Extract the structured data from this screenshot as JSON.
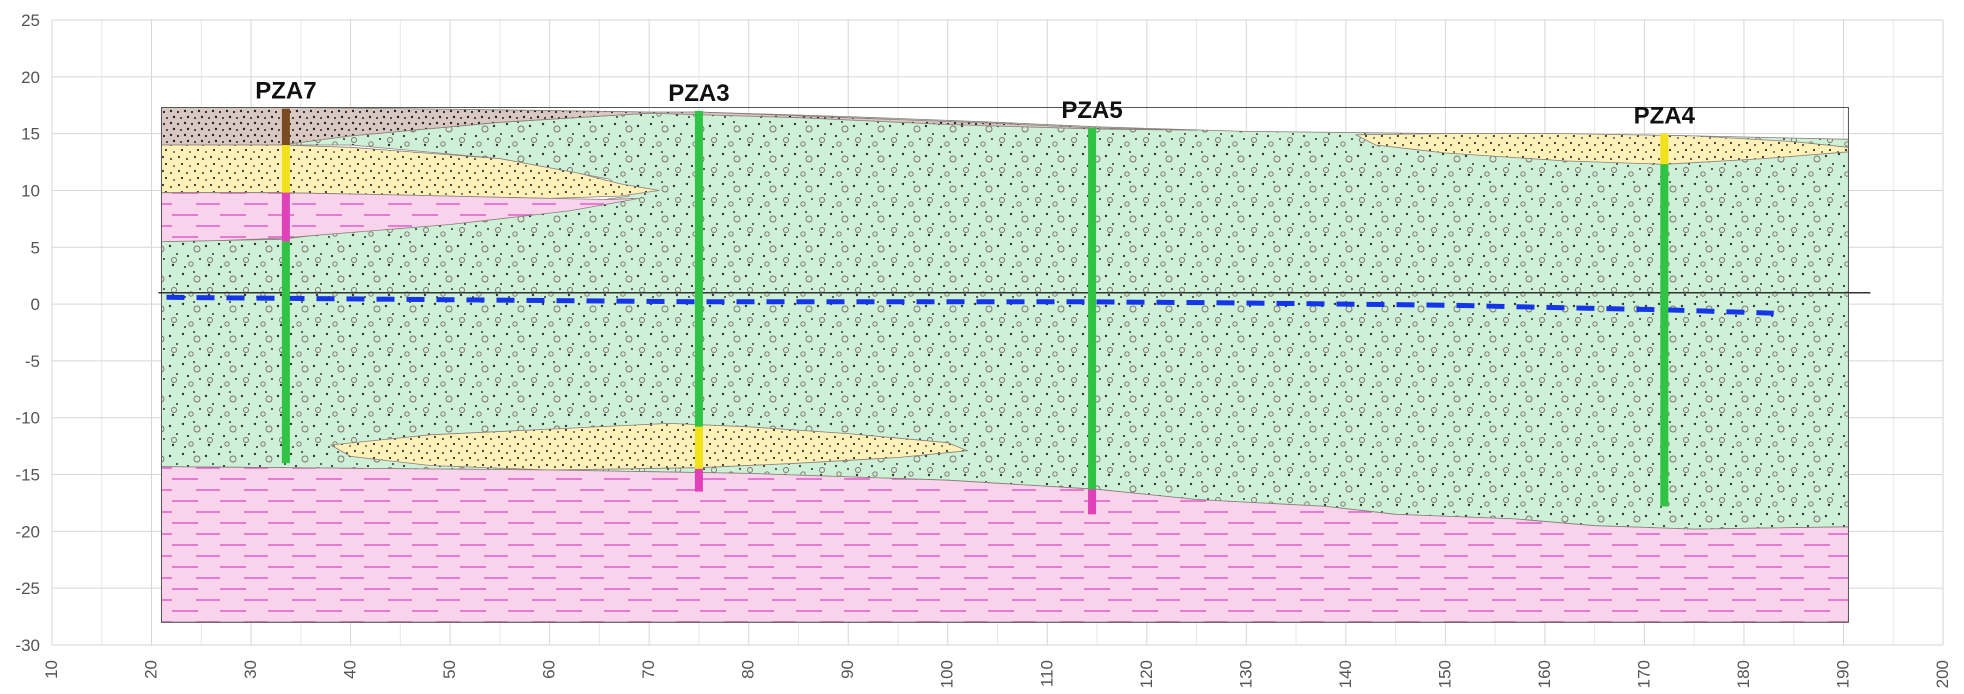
{
  "chart_data": {
    "type": "geological-cross-section",
    "xlim": [
      10,
      200
    ],
    "ylim": [
      -30,
      25
    ],
    "x_ticks": [
      "10",
      "20",
      "30",
      "40",
      "50",
      "60",
      "70",
      "80",
      "90",
      "100",
      "110",
      "120",
      "130",
      "140",
      "150",
      "160",
      "170",
      "180",
      "190",
      "200"
    ],
    "y_ticks": [
      "25",
      "20",
      "15",
      "10",
      "5",
      "0",
      "-5",
      "-10",
      "-15",
      "-20",
      "-25",
      "-30"
    ],
    "reference_line_y": 1,
    "colors": {
      "topsoil": "#d9c7c2",
      "sand": "#fff1b8",
      "clay": "#f9d2ec",
      "gravel": "#cdf0d6",
      "screen": "#2fc443",
      "pipe_sand": "#f2e21c",
      "pipe_clay": "#e040b8",
      "pipe_top": "#7a4a22",
      "water_table": "#1536e8",
      "clay_dash": "#e060c8",
      "grid": "#d6d6d6"
    },
    "boreholes": [
      {
        "name": "PZA7",
        "x": 33.5,
        "top": 17.2,
        "bottom": -14,
        "segments": [
          {
            "from": 17.2,
            "to": 14.0,
            "material": "topsoil"
          },
          {
            "from": 14.0,
            "to": 9.8,
            "material": "sand"
          },
          {
            "from": 9.8,
            "to": 5.5,
            "material": "clay"
          },
          {
            "from": 5.5,
            "to": -14,
            "material": "gravel"
          }
        ]
      },
      {
        "name": "PZA3",
        "x": 75,
        "top": 17,
        "bottom": -16.5,
        "segments": [
          {
            "from": 17,
            "to": -10.8,
            "material": "gravel"
          },
          {
            "from": -10.8,
            "to": -14.5,
            "material": "sand"
          },
          {
            "from": -14.5,
            "to": -16.5,
            "material": "clay"
          }
        ]
      },
      {
        "name": "PZA5",
        "x": 114.5,
        "top": 15.5,
        "bottom": -18.5,
        "segments": [
          {
            "from": 15.5,
            "to": -16.3,
            "material": "gravel"
          },
          {
            "from": -16.3,
            "to": -18.5,
            "material": "clay"
          }
        ]
      },
      {
        "name": "PZA4",
        "x": 172,
        "top": 15,
        "bottom": -17.8,
        "segments": [
          {
            "from": 15,
            "to": 12.3,
            "material": "sand"
          },
          {
            "from": 12.3,
            "to": -17.8,
            "material": "gravel"
          }
        ]
      }
    ],
    "water_table": [
      [
        21.5,
        0.6
      ],
      [
        33.5,
        0.5
      ],
      [
        75,
        0.2
      ],
      [
        114.5,
        0.2
      ],
      [
        130,
        0.1
      ],
      [
        150,
        -0.1
      ],
      [
        172,
        -0.5
      ],
      [
        183,
        -0.8
      ]
    ],
    "layers": [
      {
        "material": "gravel",
        "points": [
          [
            21,
            5.5
          ],
          [
            33,
            5.7
          ],
          [
            50,
            7.5
          ],
          [
            62,
            8.8
          ],
          [
            68,
            9.5
          ],
          [
            66,
            11
          ],
          [
            55,
            12.8
          ],
          [
            40,
            14
          ],
          [
            33,
            14
          ],
          [
            40,
            14.8
          ],
          [
            55,
            16
          ],
          [
            70,
            16.8
          ],
          [
            75,
            16.9
          ],
          [
            90,
            16.5
          ],
          [
            105,
            16
          ],
          [
            115,
            15.6
          ],
          [
            130,
            15.2
          ],
          [
            150,
            15.0
          ],
          [
            160,
            15.0
          ],
          [
            175,
            14.8
          ],
          [
            190.5,
            14.5
          ],
          [
            190.5,
            -19.6
          ],
          [
            175,
            -19.8
          ],
          [
            165,
            -19.5
          ],
          [
            157,
            -18.9
          ],
          [
            145,
            -18.5
          ],
          [
            138,
            -17.8
          ],
          [
            125,
            -17.2
          ],
          [
            115,
            -16.3
          ],
          [
            100,
            -15.5
          ],
          [
            80,
            -14.9
          ],
          [
            60,
            -14.6
          ],
          [
            21,
            -14.3
          ]
        ]
      },
      {
        "material": "topsoil",
        "points": [
          [
            21,
            17.3
          ],
          [
            33.5,
            17.3
          ],
          [
            55,
            17.1
          ],
          [
            70,
            16.9
          ],
          [
            75,
            16.9
          ],
          [
            90,
            16.4
          ],
          [
            105,
            15.9
          ],
          [
            115,
            15.5
          ],
          [
            125,
            15.3
          ],
          [
            115,
            15.4
          ],
          [
            100,
            15.8
          ],
          [
            85,
            16.4
          ],
          [
            70,
            16.8
          ],
          [
            55,
            16.0
          ],
          [
            40,
            14.8
          ],
          [
            33,
            14.0
          ],
          [
            21,
            14.0
          ]
        ]
      },
      {
        "material": "sand",
        "points": [
          [
            21,
            14.0
          ],
          [
            33,
            14.0
          ],
          [
            40,
            13.8
          ],
          [
            55,
            12.8
          ],
          [
            63,
            11.5
          ],
          [
            67,
            10.6
          ],
          [
            71,
            10.0
          ],
          [
            67,
            9.5
          ],
          [
            60,
            9.3
          ],
          [
            45,
            9.6
          ],
          [
            33,
            9.8
          ],
          [
            21,
            9.8
          ]
        ]
      },
      {
        "material": "clay",
        "points": [
          [
            21,
            9.8
          ],
          [
            33,
            9.8
          ],
          [
            45,
            9.6
          ],
          [
            60,
            9.3
          ],
          [
            66,
            9.2
          ],
          [
            69,
            9.3
          ],
          [
            62,
            8.2
          ],
          [
            50,
            7.0
          ],
          [
            40,
            6.3
          ],
          [
            33,
            5.8
          ],
          [
            27,
            5.6
          ],
          [
            21,
            5.5
          ]
        ]
      },
      {
        "material": "sand",
        "points": [
          [
            141,
            14.9
          ],
          [
            150,
            15.0
          ],
          [
            162,
            15.0
          ],
          [
            175,
            14.8
          ],
          [
            185,
            14.3
          ],
          [
            190.5,
            13.8
          ],
          [
            190.5,
            13.4
          ],
          [
            182,
            12.8
          ],
          [
            172,
            12.3
          ],
          [
            162,
            12.6
          ],
          [
            150,
            13.3
          ],
          [
            143,
            14.0
          ]
        ]
      },
      {
        "material": "sand",
        "points": [
          [
            38,
            -12.4
          ],
          [
            48,
            -11.5
          ],
          [
            60,
            -11.0
          ],
          [
            72,
            -10.5
          ],
          [
            80,
            -10.8
          ],
          [
            90,
            -11.4
          ],
          [
            100,
            -12.2
          ],
          [
            102,
            -12.9
          ],
          [
            95,
            -13.5
          ],
          [
            85,
            -14.0
          ],
          [
            75,
            -14.4
          ],
          [
            60,
            -14.6
          ],
          [
            48,
            -14.2
          ],
          [
            40,
            -13.4
          ]
        ]
      },
      {
        "material": "clay",
        "points": [
          [
            21,
            -14.3
          ],
          [
            60,
            -14.6
          ],
          [
            80,
            -14.9
          ],
          [
            100,
            -15.5
          ],
          [
            115,
            -16.3
          ],
          [
            125,
            -17.2
          ],
          [
            138,
            -17.8
          ],
          [
            145,
            -18.5
          ],
          [
            157,
            -18.9
          ],
          [
            165,
            -19.5
          ],
          [
            175,
            -19.8
          ],
          [
            190.5,
            -19.6
          ],
          [
            190.5,
            -28.0
          ],
          [
            21,
            -28.0
          ]
        ]
      }
    ]
  }
}
